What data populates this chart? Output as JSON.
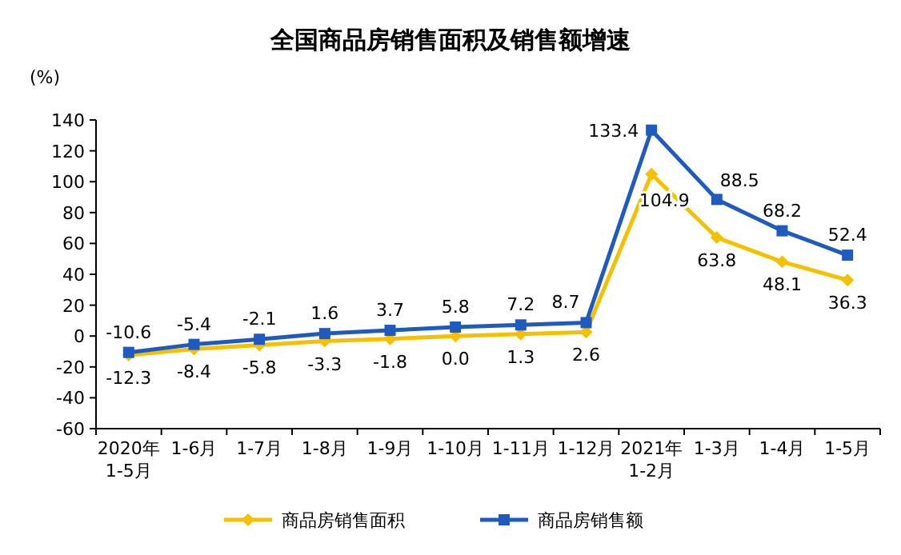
{
  "chart_data": {
    "type": "line",
    "title": "全国商品房销售面积及销售额增速",
    "ylabel": "(%)",
    "categories": [
      "2020年\n1-5月",
      "1-6月",
      "1-7月",
      "1-8月",
      "1-9月",
      "1-10月",
      "1-11月",
      "1-12月",
      "2021年\n1-2月",
      "1-3月",
      "1-4月",
      "1-5月"
    ],
    "series": [
      {
        "name": "商品房销售面积",
        "color": "#f5c000",
        "marker": "diamond",
        "values": [
          -12.3,
          -8.4,
          -5.8,
          -3.3,
          -1.8,
          0.0,
          1.3,
          2.6,
          104.9,
          63.8,
          48.1,
          36.3
        ],
        "value_labels": [
          "-12.3",
          "-8.4",
          "-5.8",
          "-3.3",
          "-1.8",
          "0.0",
          "1.3",
          "2.6",
          "104.9",
          "63.8",
          "48.1",
          "36.3"
        ]
      },
      {
        "name": "商品房销售额",
        "color": "#1f5bbf",
        "marker": "square",
        "values": [
          -10.6,
          -5.4,
          -2.1,
          1.6,
          3.7,
          5.8,
          7.2,
          8.7,
          133.4,
          88.5,
          68.2,
          52.4
        ],
        "value_labels": [
          "-10.6",
          "-5.4",
          "-2.1",
          "1.6",
          "3.7",
          "5.8",
          "7.2",
          "8.7",
          "133.4",
          "88.5",
          "68.2",
          "52.4"
        ]
      }
    ],
    "ylim": [
      -60,
      140
    ],
    "yticks": [
      -60,
      -40,
      -20,
      0,
      20,
      40,
      60,
      80,
      100,
      120,
      140
    ],
    "grid": false,
    "legend": "bottom"
  }
}
